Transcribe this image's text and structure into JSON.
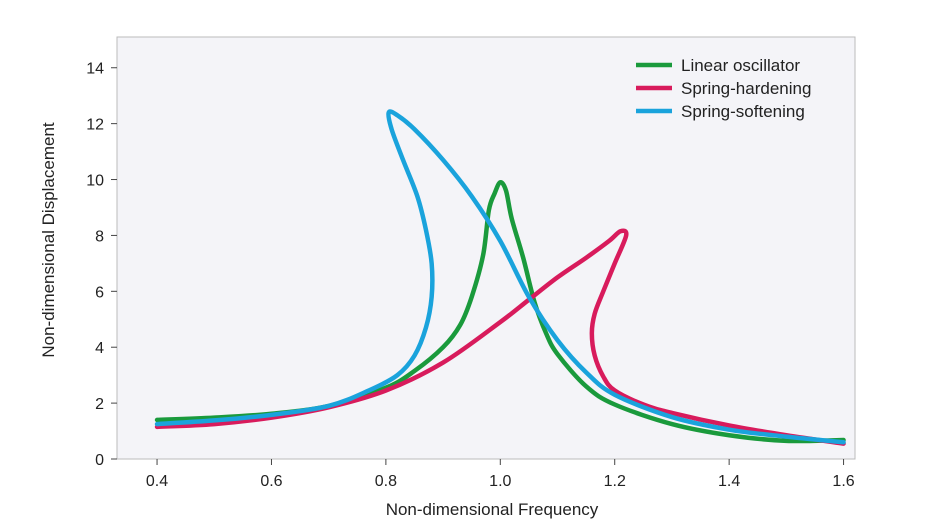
{
  "chart_data": {
    "type": "line",
    "title": "",
    "xlabel": "Non-dimensional Frequency",
    "ylabel": "Non-dimensional Displacement",
    "xlim": [
      0.33,
      1.62
    ],
    "ylim": [
      0,
      15.1
    ],
    "xticks": [
      0.4,
      0.6,
      0.8,
      1.0,
      1.2,
      1.4,
      1.6
    ],
    "xtick_labels": [
      "0.4",
      "0.6",
      "0.8",
      "1.0",
      "1.2",
      "1.4",
      "1.6"
    ],
    "yticks": [
      0,
      2,
      4,
      6,
      8,
      10,
      12,
      14
    ],
    "ytick_labels": [
      "0",
      "2",
      "4",
      "6",
      "8",
      "10",
      "12",
      "14"
    ],
    "grid": false,
    "legend_position": "top-right",
    "plot_background": "#f4f4f8",
    "series": [
      {
        "name": "Linear oscillator",
        "color": "#1a9a3c",
        "points": [
          [
            0.4,
            1.4
          ],
          [
            0.5,
            1.48
          ],
          [
            0.6,
            1.62
          ],
          [
            0.7,
            1.9
          ],
          [
            0.8,
            2.55
          ],
          [
            0.85,
            3.15
          ],
          [
            0.9,
            4.0
          ],
          [
            0.93,
            4.8
          ],
          [
            0.95,
            5.8
          ],
          [
            0.97,
            7.3
          ],
          [
            0.98,
            8.9
          ],
          [
            0.99,
            9.5
          ],
          [
            1.0,
            9.9
          ],
          [
            1.01,
            9.6
          ],
          [
            1.02,
            8.6
          ],
          [
            1.04,
            7.2
          ],
          [
            1.06,
            5.6
          ],
          [
            1.08,
            4.5
          ],
          [
            1.1,
            3.75
          ],
          [
            1.15,
            2.6
          ],
          [
            1.2,
            1.95
          ],
          [
            1.3,
            1.25
          ],
          [
            1.4,
            0.85
          ],
          [
            1.5,
            0.65
          ],
          [
            1.6,
            0.68
          ]
        ]
      },
      {
        "name": "Spring-hardening",
        "color": "#d81b5c",
        "points": [
          [
            0.4,
            1.15
          ],
          [
            0.5,
            1.25
          ],
          [
            0.6,
            1.48
          ],
          [
            0.7,
            1.85
          ],
          [
            0.8,
            2.45
          ],
          [
            0.9,
            3.45
          ],
          [
            1.0,
            4.9
          ],
          [
            1.05,
            5.7
          ],
          [
            1.1,
            6.5
          ],
          [
            1.15,
            7.2
          ],
          [
            1.19,
            7.8
          ],
          [
            1.21,
            8.15
          ],
          [
            1.22,
            8.0
          ],
          [
            1.2,
            7.0
          ],
          [
            1.18,
            6.0
          ],
          [
            1.165,
            5.2
          ],
          [
            1.16,
            4.5
          ],
          [
            1.165,
            3.7
          ],
          [
            1.18,
            2.95
          ],
          [
            1.2,
            2.45
          ],
          [
            1.25,
            1.95
          ],
          [
            1.3,
            1.65
          ],
          [
            1.4,
            1.2
          ],
          [
            1.5,
            0.85
          ],
          [
            1.6,
            0.55
          ]
        ]
      },
      {
        "name": "Spring-softening",
        "color": "#1aa3dc",
        "points": [
          [
            0.4,
            1.25
          ],
          [
            0.5,
            1.38
          ],
          [
            0.6,
            1.58
          ],
          [
            0.7,
            1.9
          ],
          [
            0.77,
            2.45
          ],
          [
            0.82,
            3.0
          ],
          [
            0.85,
            3.7
          ],
          [
            0.87,
            4.7
          ],
          [
            0.88,
            5.8
          ],
          [
            0.88,
            7.0
          ],
          [
            0.87,
            8.2
          ],
          [
            0.855,
            9.4
          ],
          [
            0.83,
            10.7
          ],
          [
            0.81,
            11.8
          ],
          [
            0.805,
            12.4
          ],
          [
            0.82,
            12.3
          ],
          [
            0.85,
            11.8
          ],
          [
            0.9,
            10.7
          ],
          [
            0.95,
            9.4
          ],
          [
            1.0,
            7.8
          ],
          [
            1.05,
            5.8
          ],
          [
            1.1,
            4.25
          ],
          [
            1.15,
            3.1
          ],
          [
            1.2,
            2.3
          ],
          [
            1.3,
            1.5
          ],
          [
            1.4,
            1.05
          ],
          [
            1.5,
            0.8
          ],
          [
            1.6,
            0.6
          ]
        ]
      }
    ]
  }
}
